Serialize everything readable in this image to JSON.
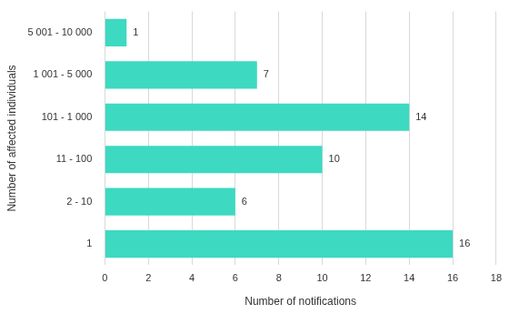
{
  "chart_data": {
    "type": "bar",
    "orientation": "horizontal",
    "x_label": "Number of notifications",
    "y_label": "Number of affected individuals",
    "categories": [
      "5 001 - 10 000",
      "1 001 - 5 000",
      "101 - 1 000",
      "11 - 100",
      "2 - 10",
      "1"
    ],
    "values": [
      1,
      7,
      14,
      10,
      6,
      16
    ],
    "color": "#3dd9c1",
    "xlim": [
      0,
      18
    ],
    "xticks": [
      0,
      2,
      4,
      6,
      8,
      10,
      12,
      14,
      16,
      18
    ],
    "grid": true,
    "data_labels": true
  }
}
